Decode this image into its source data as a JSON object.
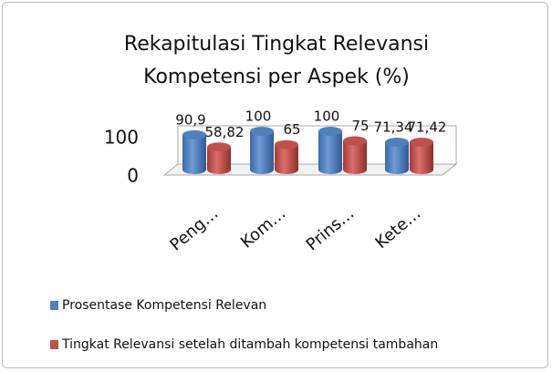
{
  "chart_data": {
    "type": "bar",
    "title": "Rekapitulasi Tingkat Relevansi Kompetensi per Aspek (%)",
    "categories": [
      "Peng…",
      "Kom…",
      "Prins…",
      "Kete…"
    ],
    "series": [
      {
        "name": "Prosentase Kompetensi Relevan",
        "color": "#4f81bd",
        "values": [
          90.9,
          100,
          100,
          71.34
        ],
        "value_labels": [
          "90,9",
          "100",
          "100",
          "71,34"
        ]
      },
      {
        "name": "Tingkat Relevansi setelah ditambah kompetensi tambahan",
        "color": "#c0504d",
        "values": [
          58.82,
          65,
          75,
          71.42
        ],
        "value_labels": [
          "58,82",
          "65",
          "75",
          "71,42"
        ]
      }
    ],
    "ylim": [
      0,
      100
    ],
    "yticks": [
      0,
      100
    ],
    "grid": true,
    "legend": "bottom-left"
  }
}
